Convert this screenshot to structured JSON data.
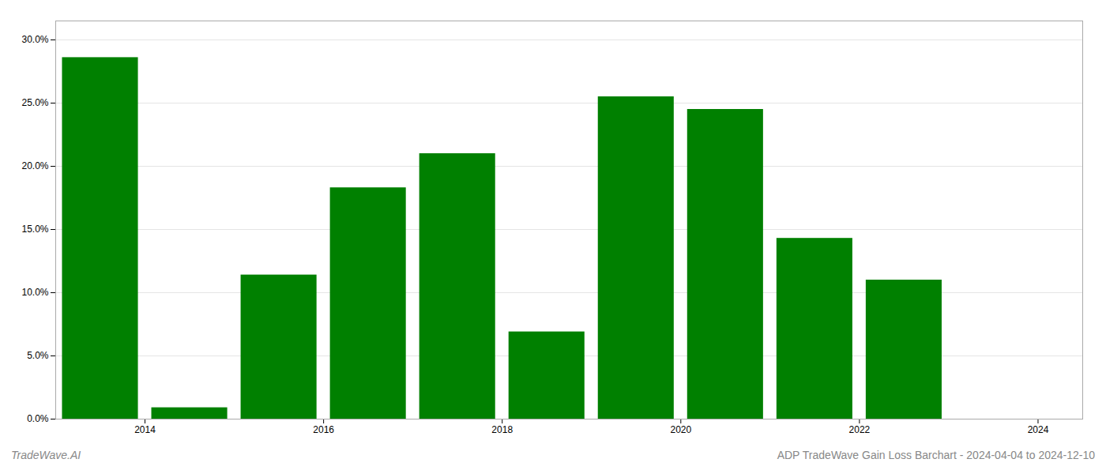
{
  "chart_data": {
    "type": "bar",
    "title": "ADP TradeWave Gain Loss Barchart - 2024-04-04 to 2024-12-10",
    "annotations": [
      "TradeWave.AI"
    ],
    "x": [
      2013.5,
      2014.5,
      2015.5,
      2016.5,
      2017.5,
      2018.5,
      2019.5,
      2020.5,
      2021.5,
      2022.5,
      2023.5
    ],
    "values": [
      0.286,
      0.009,
      0.114,
      0.183,
      0.21,
      0.069,
      0.255,
      0.245,
      0.143,
      0.11,
      0.0
    ],
    "color": "#008000",
    "xlim": [
      2013.0,
      2024.5
    ],
    "xticks": [
      2014,
      2016,
      2018,
      2020,
      2022,
      2024
    ],
    "ylim": [
      0,
      0.315
    ],
    "yticks": [
      {
        "value": 0.0,
        "label": "0.0%"
      },
      {
        "value": 0.05,
        "label": "5.0%"
      },
      {
        "value": 0.1,
        "label": "10.0%"
      },
      {
        "value": 0.15,
        "label": "15.0%"
      },
      {
        "value": 0.2,
        "label": "20.0%"
      },
      {
        "value": 0.25,
        "label": "25.0%"
      },
      {
        "value": 0.3,
        "label": "30.0%"
      }
    ],
    "grid": true
  }
}
